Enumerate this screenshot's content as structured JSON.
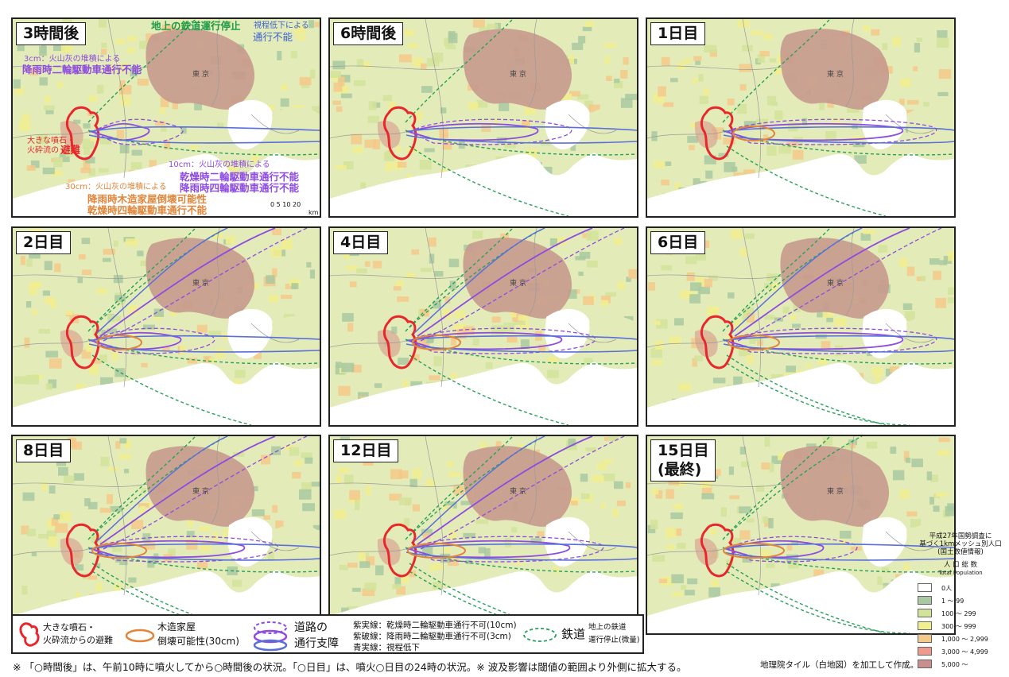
{
  "panels": [
    {
      "title": "3時間後",
      "stage": 0
    },
    {
      "title": "6時間後",
      "stage": 1
    },
    {
      "title": "1日目",
      "stage": 2
    },
    {
      "title": "2日目",
      "stage": 3
    },
    {
      "title": "4日目",
      "stage": 4
    },
    {
      "title": "6日目",
      "stage": 5
    },
    {
      "title": "8日目",
      "stage": 6
    },
    {
      "title": "12日目",
      "stage": 7
    },
    {
      "title": "15日目\n(最終)",
      "stage": 8
    }
  ],
  "annotations": {
    "rail": "地上の鉄道運行停止",
    "visibility_small": "視程低下による",
    "visibility_big": "通行不能",
    "ash3_small": "3cm：火山灰の堆積による",
    "ash3_big": "降雨時二輪駆動車通行不能",
    "evac_small1": "大きな噴石・",
    "evac_small2": "火砕流の",
    "evac_big": "避難",
    "ash10_small": "10cm：火山灰の堆積による",
    "ash10_big1": "乾燥時二輪駆動車通行不能",
    "ash10_big2": "降雨時四輪駆動車通行不能",
    "ash30_small": "30cm：火山灰の堆積による",
    "ash30_big1": "降雨時木造家屋倒壊可能性",
    "ash30_big2": "乾燥時四輪駆動車通行不能",
    "scale": "0  5 10    20",
    "scale_unit": "km",
    "tokyo": "東 京"
  },
  "legend": {
    "evac1": "大きな噴石・",
    "evac2": "火砕流からの避難",
    "house1": "木造家屋",
    "house2": "倒壊可能性(30cm)",
    "road1": "道路の",
    "road2": "通行支障",
    "line1": "紫実線：乾燥時二輪駆動車通行不可(10cm)",
    "line2": "紫破線：降雨時二輪駆動車通行不可(3cm)",
    "line3": "青実線：視程低下",
    "rail": "鉄道",
    "rail_desc1": "地上の鉄道",
    "rail_desc2": "運行停止(微量)"
  },
  "population_legend": {
    "title1": "平成27年国勢調査に",
    "title2": "基づく1kmメッシュ別人口",
    "title3": "(国土数値情報)",
    "heading": "人 口 総 数",
    "heading_en": "Total Population",
    "classes": [
      {
        "label": "0人",
        "color": "#ffffff"
      },
      {
        "label": "1  ～    99",
        "color": "#a9c9a0"
      },
      {
        "label": "100  ～  299",
        "color": "#d2e39a"
      },
      {
        "label": "300  ～  999",
        "color": "#f2ef8e"
      },
      {
        "label": "1,000  ～  2,999",
        "color": "#f4c98a"
      },
      {
        "label": "3,000  ～  4,999",
        "color": "#ee9a8c"
      },
      {
        "label": "5,000  ～",
        "color": "#c98f8c"
      }
    ]
  },
  "footnote": "※ 「○時間後」は、午前10時に噴火してから○時間後の状況。「○日目」は、噴火○日目の24時の状況。※ 波及影響は閾値の範囲より外側に拡大する。",
  "credit": "地理院タイル（白地図）を加工して作成。",
  "colors": {
    "evac": "#e8262b",
    "house": "#e0853a",
    "road_purple": "#8e4be0",
    "road_blue": "#5a6fdc",
    "rail": "#2aa05a",
    "urban": "#c79a8e"
  }
}
